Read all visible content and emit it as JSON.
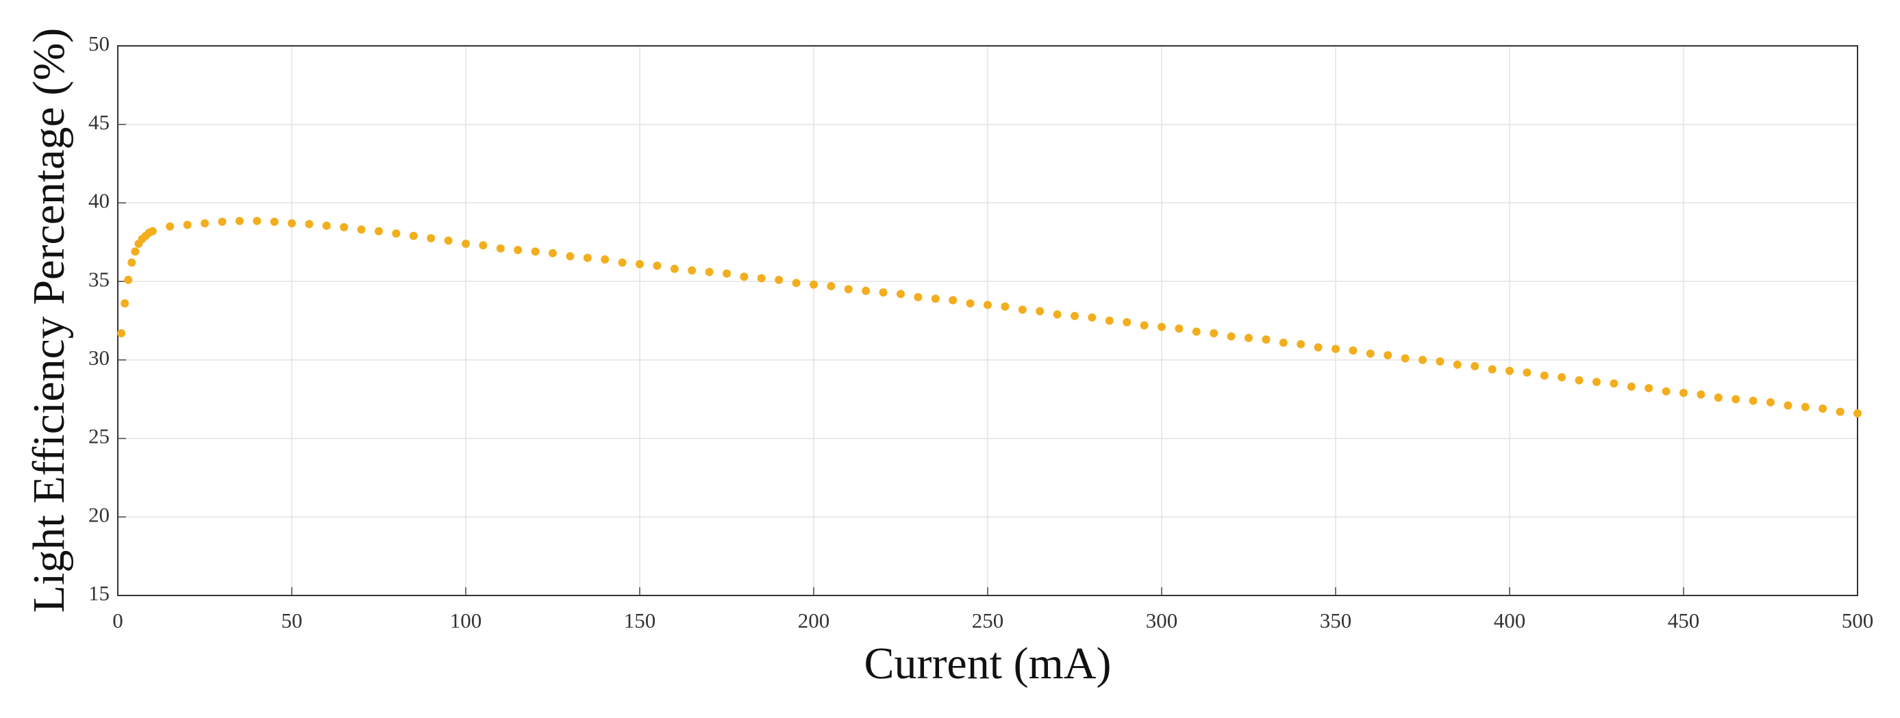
{
  "chart_data": {
    "type": "scatter",
    "x_label": "Current (mA)",
    "y_label": "Light Efficiency Percentage (%)",
    "color": "#f2ae1c",
    "grid": true,
    "xlim": [
      0,
      500
    ],
    "xticks": [
      0,
      50,
      100,
      150,
      200,
      250,
      300,
      350,
      400,
      450,
      500
    ],
    "ylim": [
      15,
      50
    ],
    "yticks": [
      15,
      20,
      25,
      30,
      35,
      40,
      45,
      50
    ],
    "x": [
      1,
      2,
      3,
      4,
      5,
      6,
      7,
      8,
      9,
      10,
      15,
      20,
      25,
      30,
      35,
      40,
      45,
      50,
      55,
      60,
      65,
      70,
      75,
      80,
      85,
      90,
      95,
      100,
      105,
      110,
      115,
      120,
      125,
      130,
      135,
      140,
      145,
      150,
      155,
      160,
      165,
      170,
      175,
      180,
      185,
      190,
      195,
      200,
      205,
      210,
      215,
      220,
      225,
      230,
      235,
      240,
      245,
      250,
      255,
      260,
      265,
      270,
      275,
      280,
      285,
      290,
      295,
      300,
      305,
      310,
      315,
      320,
      325,
      330,
      335,
      340,
      345,
      350,
      355,
      360,
      365,
      370,
      375,
      380,
      385,
      390,
      395,
      400,
      405,
      410,
      415,
      420,
      425,
      430,
      435,
      440,
      445,
      450,
      455,
      460,
      465,
      470,
      475,
      480,
      485,
      490,
      495,
      500
    ],
    "y": [
      31.7,
      33.6,
      35.1,
      36.2,
      36.9,
      37.4,
      37.7,
      37.9,
      38.1,
      38.2,
      38.5,
      38.6,
      38.7,
      38.8,
      38.85,
      38.85,
      38.8,
      38.7,
      38.65,
      38.55,
      38.45,
      38.3,
      38.2,
      38.05,
      37.9,
      37.75,
      37.6,
      37.4,
      37.3,
      37.1,
      37.0,
      36.9,
      36.8,
      36.6,
      36.5,
      36.4,
      36.2,
      36.1,
      36.0,
      35.8,
      35.7,
      35.6,
      35.5,
      35.3,
      35.2,
      35.1,
      34.9,
      34.8,
      34.7,
      34.5,
      34.4,
      34.3,
      34.2,
      34.0,
      33.9,
      33.8,
      33.6,
      33.5,
      33.4,
      33.2,
      33.1,
      32.9,
      32.8,
      32.7,
      32.5,
      32.4,
      32.2,
      32.1,
      32.0,
      31.8,
      31.7,
      31.5,
      31.4,
      31.3,
      31.1,
      31.0,
      30.8,
      30.7,
      30.6,
      30.4,
      30.3,
      30.1,
      30.0,
      29.9,
      29.7,
      29.6,
      29.4,
      29.3,
      29.2,
      29.0,
      28.9,
      28.7,
      28.6,
      28.5,
      28.3,
      28.2,
      28.0,
      27.9,
      27.8,
      27.6,
      27.5,
      27.4,
      27.3,
      27.1,
      27.0,
      26.9,
      26.7,
      26.6
    ]
  }
}
